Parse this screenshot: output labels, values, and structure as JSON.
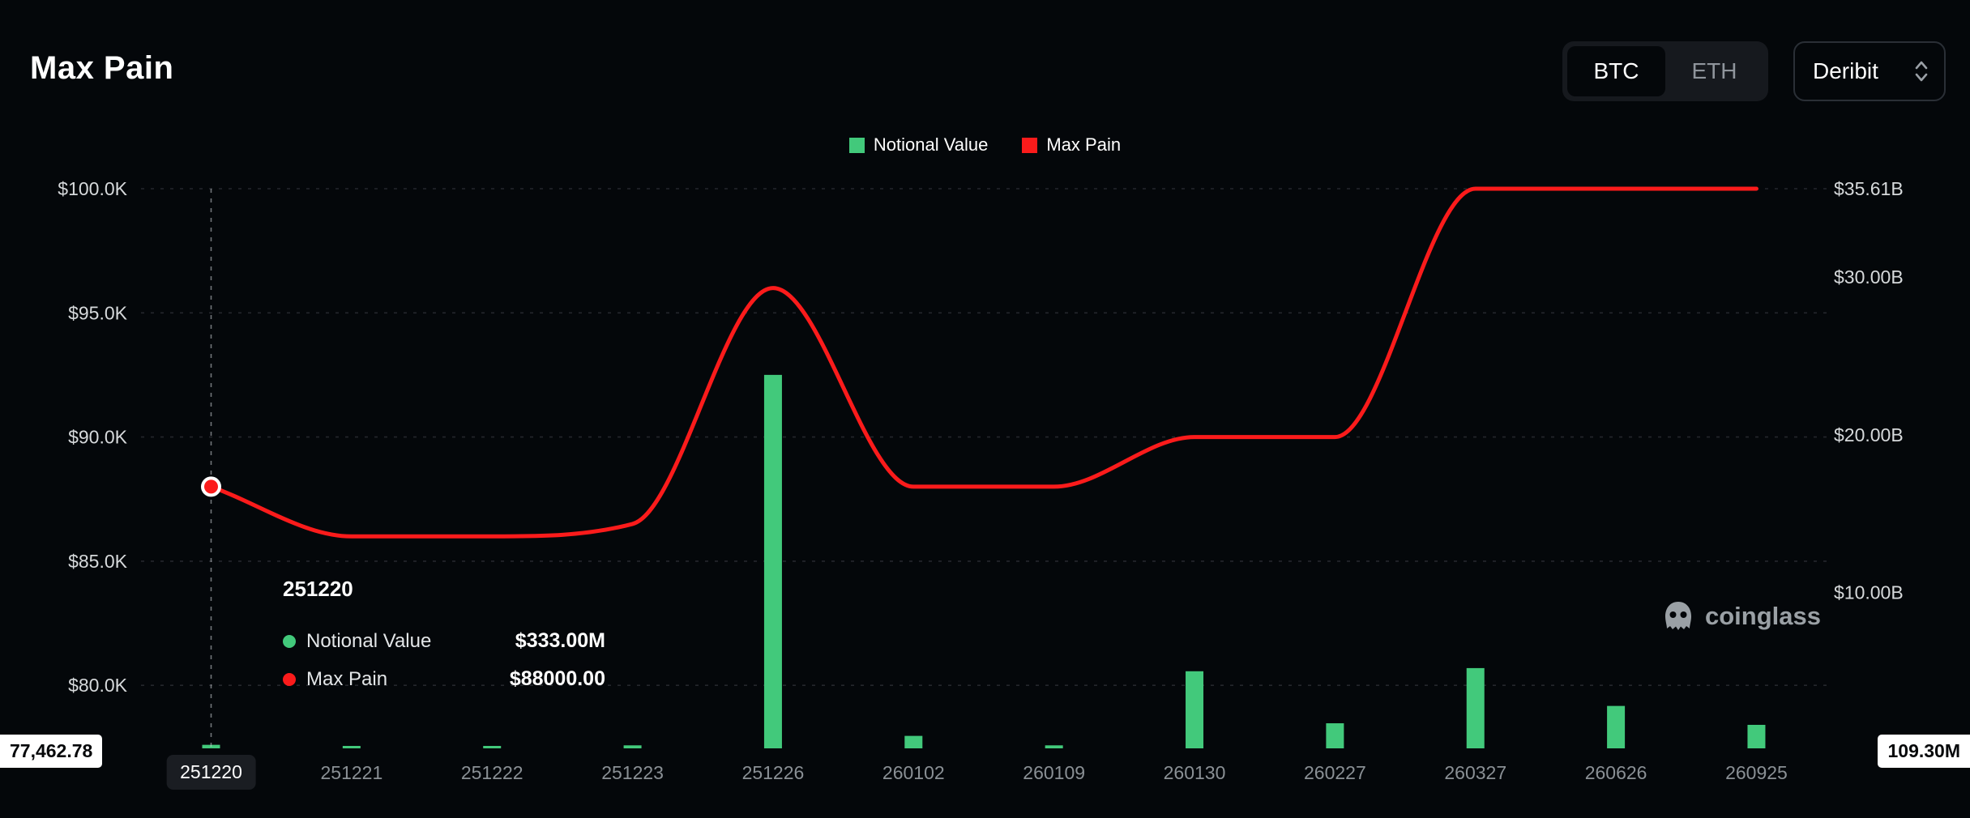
{
  "header": {
    "title": "Max Pain",
    "asset_toggle": {
      "options": [
        "BTC",
        "ETH"
      ],
      "selected": "BTC"
    },
    "exchange_select": {
      "value": "Deribit"
    }
  },
  "legend": {
    "items": [
      {
        "label": "Notional Value",
        "color": "#42c97b"
      },
      {
        "label": "Max Pain",
        "color": "#fb1b1b"
      }
    ]
  },
  "tooltip": {
    "title": "251220",
    "rows": [
      {
        "label": "Notional Value",
        "value": "$333.00M",
        "color": "#42c97b"
      },
      {
        "label": "Max Pain",
        "value": "$88000.00",
        "color": "#fb1b1b"
      }
    ]
  },
  "axes_badges": {
    "left": "77,462.78",
    "right": "109.30M"
  },
  "watermark": {
    "text": "coinglass"
  },
  "chart_data": {
    "type": "mixed",
    "title": "Max Pain",
    "categories": [
      "251220",
      "251221",
      "251222",
      "251223",
      "251226",
      "260102",
      "260109",
      "260130",
      "260227",
      "260327",
      "260626",
      "260925"
    ],
    "series": [
      {
        "name": "Notional Value",
        "type": "bar",
        "axis": "right",
        "unit": "B USD",
        "color": "#42c97b",
        "values": [
          0.333,
          0.15,
          0.15,
          0.3,
          23.8,
          0.9,
          0.3,
          5.0,
          1.7,
          5.2,
          2.8,
          1.6
        ]
      },
      {
        "name": "Max Pain",
        "type": "line",
        "axis": "left",
        "unit": "USD",
        "color": "#fb1b1b",
        "values": [
          88000,
          86000,
          86000,
          86500,
          96000,
          88000,
          88000,
          90000,
          90000,
          100000,
          100000,
          100000
        ]
      }
    ],
    "left_axis": {
      "min": 77462.78,
      "max": 100000,
      "ticks": [
        {
          "label": "$100.0K",
          "value": 100000
        },
        {
          "label": "$95.0K",
          "value": 95000
        },
        {
          "label": "$90.0K",
          "value": 90000
        },
        {
          "label": "$85.0K",
          "value": 85000
        },
        {
          "label": "$80.0K",
          "value": 80000
        }
      ]
    },
    "right_axis": {
      "min": 0.1093,
      "max": 35.61,
      "ticks": [
        {
          "label": "$35.61B",
          "value": 35.61
        },
        {
          "label": "$30.00B",
          "value": 30
        },
        {
          "label": "$20.00B",
          "value": 20
        },
        {
          "label": "$10.00B",
          "value": 10
        }
      ]
    },
    "highlight": {
      "category": "251220",
      "max_pain_value": 88000,
      "notional_value": "$333.00M"
    },
    "grid": "dashed-horizontal",
    "legend_position": "top-center"
  }
}
